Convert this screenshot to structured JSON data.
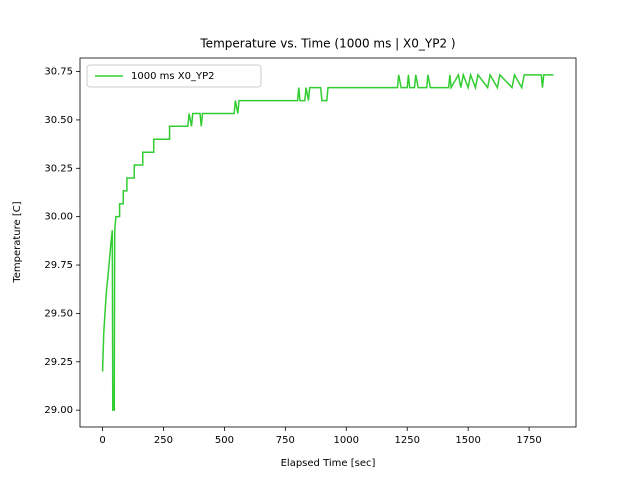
{
  "chart_data": {
    "type": "line",
    "title": "Temperature vs. Time (1000 ms | X0_YP2 )",
    "x_label": "Elapsed Time [sec]",
    "y_label": "Temperature [C]",
    "x": [
      0,
      5,
      15,
      25,
      30,
      35,
      40,
      42,
      48,
      50,
      55,
      70,
      70,
      85,
      85,
      100,
      100,
      130,
      130,
      165,
      165,
      210,
      210,
      275,
      275,
      350,
      355,
      365,
      370,
      400,
      405,
      410,
      540,
      545,
      555,
      560,
      800,
      805,
      810,
      830,
      835,
      845,
      850,
      895,
      900,
      920,
      925,
      1210,
      1215,
      1225,
      1250,
      1255,
      1260,
      1280,
      1285,
      1295,
      1330,
      1335,
      1345,
      1420,
      1425,
      1430,
      1460,
      1470,
      1480,
      1500,
      1510,
      1530,
      1540,
      1580,
      1590,
      1620,
      1630,
      1680,
      1690,
      1720,
      1730,
      1800,
      1805,
      1810,
      1850
    ],
    "series": [
      {
        "name": "1000 ms X0_YP2",
        "color": "#32cd32",
        "values": [
          29.2,
          29.4,
          29.6,
          29.73,
          29.8,
          29.87,
          29.93,
          29.0,
          29.0,
          29.93,
          30.0,
          30.0,
          30.067,
          30.067,
          30.133,
          30.133,
          30.2,
          30.2,
          30.267,
          30.267,
          30.333,
          30.333,
          30.4,
          30.4,
          30.467,
          30.467,
          30.533,
          30.467,
          30.533,
          30.533,
          30.467,
          30.533,
          30.533,
          30.6,
          30.533,
          30.6,
          30.6,
          30.667,
          30.6,
          30.6,
          30.667,
          30.6,
          30.667,
          30.667,
          30.6,
          30.6,
          30.667,
          30.667,
          30.733,
          30.667,
          30.667,
          30.733,
          30.667,
          30.667,
          30.733,
          30.667,
          30.667,
          30.733,
          30.667,
          30.667,
          30.733,
          30.667,
          30.733,
          30.667,
          30.733,
          30.667,
          30.733,
          30.667,
          30.733,
          30.667,
          30.733,
          30.667,
          30.733,
          30.667,
          30.733,
          30.667,
          30.733,
          30.733,
          30.667,
          30.733,
          30.733
        ]
      }
    ],
    "xlim": [
      -92.5,
      1942.5
    ],
    "ylim": [
      28.913,
      30.82
    ],
    "xticks": [
      0,
      250,
      500,
      750,
      1000,
      1250,
      1500,
      1750
    ],
    "yticks": [
      {
        "value": 29.0,
        "label": "29.00"
      },
      29.25,
      {
        "value": 29.5,
        "label": "29.50"
      },
      29.75,
      {
        "value": 30.0,
        "label": "30.00"
      },
      30.25,
      {
        "value": 30.5,
        "label": "30.50"
      },
      30.75
    ],
    "legend": "upper left"
  }
}
